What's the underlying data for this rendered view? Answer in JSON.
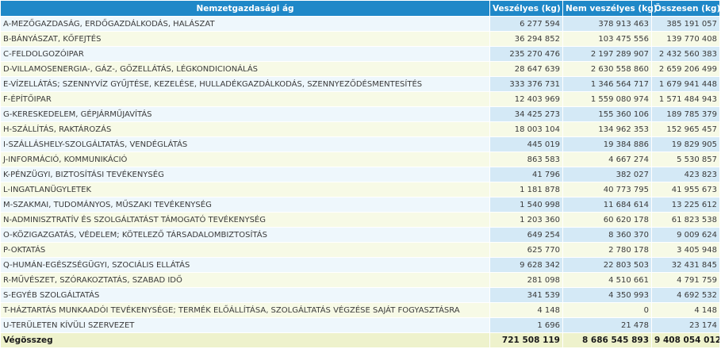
{
  "table": {
    "headers": [
      "Nemzetgazdasági ág",
      "Veszélyes (kg)",
      "Nem veszélyes (kg)",
      "Összesen (kg)"
    ],
    "rows": [
      [
        "A-MEZŐGAZDASÁG, ERDŐGAZDÁLKODÁS, HALÁSZAT",
        "6 277 594",
        "378 913 463",
        "385 191 057"
      ],
      [
        "B-BÁNYÁSZAT, KŐFEJTÉS",
        "36 294 852",
        "103 475 556",
        "139 770 408"
      ],
      [
        "C-FELDOLGOZÓIPAR",
        "235 270 476",
        "2 197 289 907",
        "2 432 560 383"
      ],
      [
        "D-VILLAMOSENERGIA-, GÁZ-, GŐZELLÁTÁS, LÉGKONDICIONÁLÁS",
        "28 647 639",
        "2 630 558 860",
        "2 659 206 499"
      ],
      [
        "E-VÍZELLÁTÁS; SZENNYVÍZ GYŰJTÉSE, KEZELÉSE, HULLADÉKGAZDÁLKODÁS, SZENNYEZŐDÉSMENTESÍTÉS",
        "333 376 731",
        "1 346 564 717",
        "1 679 941 448"
      ],
      [
        "F-ÉPÍTŐIPAR",
        "12 403 969",
        "1 559 080 974",
        "1 571 484 943"
      ],
      [
        "G-KERESKEDELEM, GÉPJÁRMŰJAVÍTÁS",
        "34 425 273",
        "155 360 106",
        "189 785 379"
      ],
      [
        "H-SZÁLLÍTÁS, RAKTÁROZÁS",
        "18 003 104",
        "134 962 353",
        "152 965 457"
      ],
      [
        "I-SZÁLLÁSHELY-SZOLGÁLTATÁS, VENDÉGLÁTÁS",
        "445 019",
        "19 384 886",
        "19 829 905"
      ],
      [
        "J-INFORMÁCIÓ, KOMMUNIKÁCIÓ",
        "863 583",
        "4 667 274",
        "5 530 857"
      ],
      [
        "K-PÉNZÜGYI, BIZTOSÍTÁSI TEVÉKENYSÉG",
        "41 796",
        "382 027",
        "423 823"
      ],
      [
        "L-INGATLANÜGYLETEK",
        "1 181 878",
        "40 773 795",
        "41 955 673"
      ],
      [
        "M-SZAKMAI, TUDOMÁNYOS, MŰSZAKI TEVÉKENYSÉG",
        "1 540 998",
        "11 684 614",
        "13 225 612"
      ],
      [
        "N-ADMINISZTRATÍV ÉS SZOLGÁLTATÁST TÁMOGATÓ TEVÉKENYSÉG",
        "1 203 360",
        "60 620 178",
        "61 823 538"
      ],
      [
        "O-KÖZIGAZGATÁS, VÉDELEM; KÖTELEZŐ TÁRSADALOMBIZTOSÍTÁS",
        "649 254",
        "8 360 370",
        "9 009 624"
      ],
      [
        "P-OKTATÁS",
        "625 770",
        "2 780 178",
        "3 405 948"
      ],
      [
        "Q-HUMÁN-EGÉSZSÉGÜGYI, SZOCIÁLIS ELLÁTÁS",
        "9 628 342",
        "22 803 503",
        "32 431 845"
      ],
      [
        "R-MŰVÉSZET, SZÓRAKOZTATÁS, SZABAD IDŐ",
        "281 098",
        "4 510 661",
        "4 791 759"
      ],
      [
        "S-EGYÉB SZOLGÁLTATÁS",
        "341 539",
        "4 350 993",
        "4 692 532"
      ],
      [
        "T-HÁZTARTÁS MUNKAADÓI TEVÉKENYSÉGE; TERMÉK ELŐÁLLÍTÁSA, SZOLGÁLTATÁS VÉGZÉSE SAJÁT FOGYASZTÁSRA",
        "4 148",
        "0",
        "4 148"
      ],
      [
        "U-TERÜLETEN KÍVÜLI SZERVEZET",
        "1 696",
        "21 478",
        "23 174"
      ]
    ],
    "total": [
      "Végösszeg",
      "721 508 119",
      "8 686 545 893",
      "9 408 054 012"
    ]
  }
}
